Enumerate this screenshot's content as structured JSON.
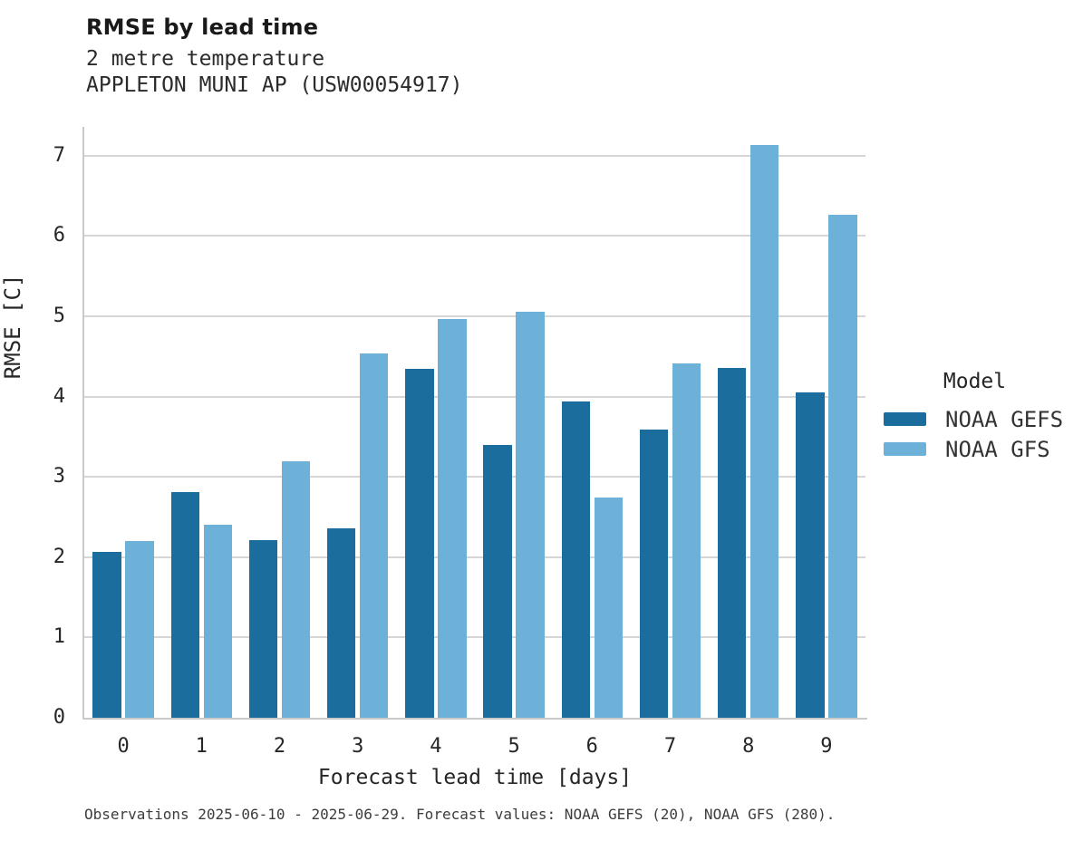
{
  "header": {
    "title": "RMSE by lead time",
    "subtitle1": "2 metre temperature",
    "subtitle2": "APPLETON MUNI AP (USW00054917)"
  },
  "chart_data": {
    "type": "bar",
    "title": "RMSE by lead time",
    "subtitle": [
      "2 metre temperature",
      "APPLETON MUNI AP (USW00054917)"
    ],
    "categories": [
      "0",
      "1",
      "2",
      "3",
      "4",
      "5",
      "6",
      "7",
      "8",
      "9"
    ],
    "series": [
      {
        "name": "NOAA GEFS",
        "color": "#1a6d9c",
        "values": [
          2.07,
          2.81,
          2.21,
          2.36,
          4.35,
          3.4,
          3.94,
          3.59,
          4.36,
          4.05
        ]
      },
      {
        "name": "NOAA GFS",
        "color": "#6db1d8",
        "values": [
          2.2,
          2.41,
          3.2,
          4.54,
          4.97,
          5.06,
          2.74,
          4.41,
          7.13,
          6.27
        ]
      }
    ],
    "xlabel": "Forecast lead time [days]",
    "ylabel": "RMSE [C]",
    "ylim": [
      0,
      7.36
    ],
    "yticks": [
      0,
      1,
      2,
      3,
      4,
      5,
      6,
      7
    ],
    "grid": true,
    "gridline_color": "#d6d6d6",
    "legend_title": "Model",
    "legend_position": "right"
  },
  "legend": {
    "title": "Model",
    "items": [
      {
        "label": "NOAA GEFS",
        "color": "#1a6d9c"
      },
      {
        "label": "NOAA GFS",
        "color": "#6db1d8"
      }
    ]
  },
  "footer": {
    "note": "Observations 2025-06-10 - 2025-06-29. Forecast values: NOAA GEFS (20), NOAA GFS (280)."
  }
}
